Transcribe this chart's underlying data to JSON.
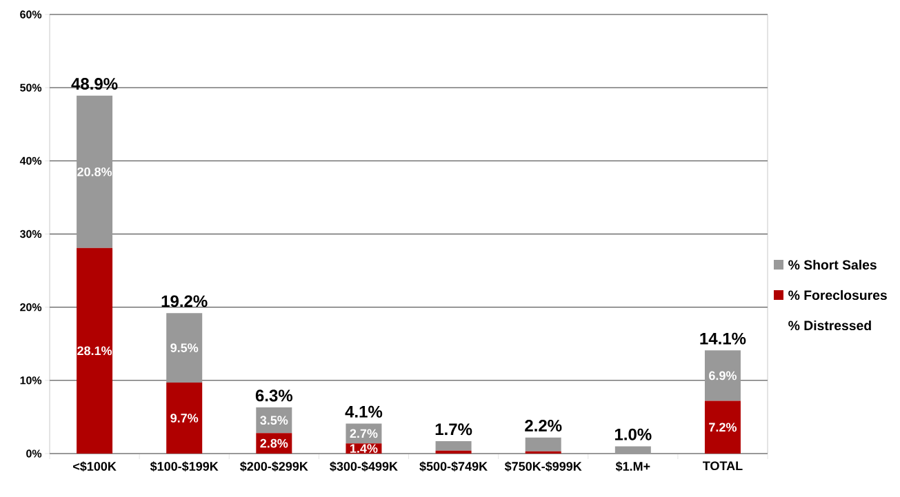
{
  "chart_data": {
    "type": "bar",
    "stacked": true,
    "categories": [
      "<$100K",
      "$100-$199K",
      "$200-$299K",
      "$300-$499K",
      "$500-$749K",
      "$750K-$999K",
      "$1.M+",
      "TOTAL"
    ],
    "series": [
      {
        "name": "% Foreclosures",
        "color": "#b00000",
        "values": [
          28.1,
          9.7,
          2.8,
          1.4,
          0.4,
          0.3,
          0.0,
          7.2
        ],
        "value_labels": [
          "28.1%",
          "9.7%",
          "2.8%",
          "1.4%",
          null,
          null,
          null,
          "7.2%"
        ]
      },
      {
        "name": "% Short Sales",
        "color": "#999999",
        "values": [
          20.8,
          9.5,
          3.5,
          2.7,
          1.3,
          1.9,
          1.0,
          6.9
        ],
        "value_labels": [
          "20.8%",
          "9.5%",
          "3.5%",
          "2.7%",
          null,
          null,
          null,
          "6.9%"
        ]
      }
    ],
    "totals": [
      "48.9%",
      "19.2%",
      "6.3%",
      "4.1%",
      "1.7%",
      "2.2%",
      "1.0%",
      "14.1%"
    ],
    "annotations": [
      "% Distressed"
    ],
    "ylim": [
      0,
      60
    ],
    "yticks": [
      {
        "value": 0,
        "label": "0%"
      },
      {
        "value": 10,
        "label": "10%"
      },
      {
        "value": 20,
        "label": "20%"
      },
      {
        "value": 30,
        "label": "30%"
      },
      {
        "value": 40,
        "label": "40%"
      },
      {
        "value": 50,
        "label": "50%"
      },
      {
        "value": 60,
        "label": "60%"
      }
    ],
    "grid": "y",
    "legend": "right"
  }
}
